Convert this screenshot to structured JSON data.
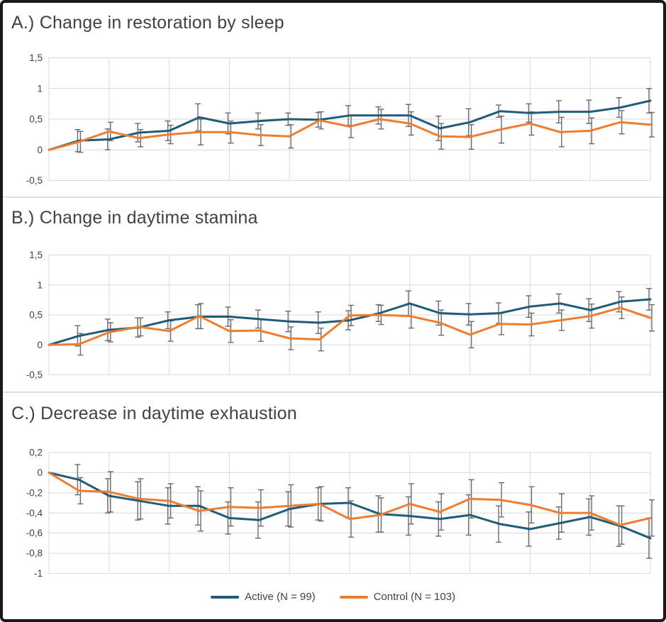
{
  "figure": {
    "background": "#FFFFFF",
    "border_color": "#1A1A1A",
    "gridline_color": "#DADADA",
    "error_bar_color": "#6B6B6B",
    "text_color": "#424242"
  },
  "legend": {
    "position": "bottom-center",
    "items": [
      {
        "label": "Active (N = 99)",
        "color": "#1F5C77"
      },
      {
        "label": "Control (N = 103)",
        "color": "#ED7D31"
      }
    ]
  },
  "chart_data": [
    {
      "type": "line",
      "title": "A.) Change in restoration by sleep",
      "ylabel": "",
      "xlabel": "",
      "x_tick_labels_visible": false,
      "n_points": 21,
      "x": [
        0,
        1,
        2,
        3,
        4,
        5,
        6,
        7,
        8,
        9,
        10,
        11,
        12,
        13,
        14,
        15,
        16,
        17,
        18,
        19,
        20
      ],
      "ylim": [
        -0.5,
        1.5
      ],
      "yticks": {
        "values": [
          1.5,
          1,
          0.5,
          0,
          -0.5
        ],
        "labels": [
          "1,5",
          "1",
          "0,5",
          "0",
          "-0,5"
        ]
      },
      "grid": true,
      "series": [
        {
          "name": "Active (N = 99)",
          "color": "#1F5C77",
          "values": [
            0,
            0.15,
            0.17,
            0.28,
            0.31,
            0.53,
            0.43,
            0.47,
            0.5,
            0.49,
            0.56,
            0.56,
            0.56,
            0.35,
            0.45,
            0.63,
            0.6,
            0.62,
            0.62,
            0.69,
            0.8
          ],
          "errors": [
            0,
            0.18,
            0.17,
            0.15,
            0.16,
            0.22,
            0.17,
            0.13,
            0.1,
            0.12,
            0.16,
            0.14,
            0.18,
            0.2,
            0.22,
            0.1,
            0.15,
            0.18,
            0.19,
            0.16,
            0.2
          ]
        },
        {
          "name": "Control (N = 103)",
          "color": "#ED7D31",
          "values": [
            0,
            0.13,
            0.3,
            0.19,
            0.25,
            0.29,
            0.29,
            0.24,
            0.22,
            0.48,
            0.38,
            0.5,
            0.43,
            0.22,
            0.21,
            0.33,
            0.43,
            0.29,
            0.31,
            0.45,
            0.41
          ],
          "errors": [
            0,
            0.17,
            0.15,
            0.14,
            0.15,
            0.21,
            0.18,
            0.17,
            0.19,
            0.14,
            0.18,
            0.16,
            0.19,
            0.21,
            0.2,
            0.22,
            0.19,
            0.24,
            0.21,
            0.19,
            0.2
          ]
        }
      ]
    },
    {
      "type": "line",
      "title": "B.) Change in daytime stamina",
      "ylabel": "",
      "xlabel": "",
      "x_tick_labels_visible": false,
      "n_points": 21,
      "x": [
        0,
        1,
        2,
        3,
        4,
        5,
        6,
        7,
        8,
        9,
        10,
        11,
        12,
        13,
        14,
        15,
        16,
        17,
        18,
        19,
        20
      ],
      "ylim": [
        -0.5,
        1.5
      ],
      "yticks": {
        "values": [
          1.5,
          1,
          0.5,
          0,
          -0.5
        ],
        "labels": [
          "1,5",
          "1",
          "0,5",
          "0",
          "-0,5"
        ]
      },
      "grid": true,
      "series": [
        {
          "name": "Active (N = 99)",
          "color": "#1F5C77",
          "values": [
            0,
            0.15,
            0.25,
            0.29,
            0.41,
            0.47,
            0.47,
            0.43,
            0.39,
            0.37,
            0.41,
            0.53,
            0.69,
            0.53,
            0.51,
            0.53,
            0.64,
            0.69,
            0.58,
            0.72,
            0.76
          ],
          "errors": [
            0,
            0.17,
            0.18,
            0.16,
            0.14,
            0.2,
            0.16,
            0.15,
            0.17,
            0.18,
            0.16,
            0.14,
            0.21,
            0.2,
            0.18,
            0.17,
            0.18,
            0.16,
            0.19,
            0.17,
            0.18
          ]
        },
        {
          "name": "Control (N = 103)",
          "color": "#ED7D31",
          "values": [
            0,
            0.01,
            0.21,
            0.3,
            0.23,
            0.48,
            0.23,
            0.24,
            0.11,
            0.09,
            0.49,
            0.5,
            0.48,
            0.37,
            0.17,
            0.35,
            0.34,
            0.41,
            0.48,
            0.62,
            0.45
          ],
          "errors": [
            0,
            0.18,
            0.16,
            0.15,
            0.17,
            0.21,
            0.19,
            0.18,
            0.19,
            0.19,
            0.17,
            0.16,
            0.2,
            0.21,
            0.22,
            0.18,
            0.19,
            0.17,
            0.2,
            0.18,
            0.22
          ]
        }
      ]
    },
    {
      "type": "line",
      "title": "C.) Decrease in daytime exhaustion",
      "ylabel": "",
      "xlabel": "",
      "x_tick_labels_visible": false,
      "n_points": 21,
      "x": [
        0,
        1,
        2,
        3,
        4,
        5,
        6,
        7,
        8,
        9,
        10,
        11,
        12,
        13,
        14,
        15,
        16,
        17,
        18,
        19,
        20
      ],
      "ylim": [
        -1,
        0.2
      ],
      "yticks": {
        "values": [
          0.2,
          0,
          -0.2,
          -0.4,
          -0.6,
          -0.8,
          -1
        ],
        "labels": [
          "0,2",
          "0",
          "-0,2",
          "-0,4",
          "-0,6",
          "-0,8",
          "-1"
        ]
      },
      "grid": true,
      "series": [
        {
          "name": "Active (N = 99)",
          "color": "#1F5C77",
          "values": [
            0,
            -0.07,
            -0.23,
            -0.28,
            -0.33,
            -0.33,
            -0.45,
            -0.47,
            -0.36,
            -0.31,
            -0.3,
            -0.41,
            -0.43,
            -0.46,
            -0.42,
            -0.51,
            -0.56,
            -0.5,
            -0.44,
            -0.53,
            -0.65
          ],
          "errors": [
            0,
            0.15,
            0.17,
            0.19,
            0.18,
            0.19,
            0.16,
            0.18,
            0.17,
            0.16,
            0.15,
            0.18,
            0.19,
            0.17,
            0.2,
            0.18,
            0.17,
            0.16,
            0.18,
            0.2,
            0.2
          ]
        },
        {
          "name": "Control (N = 103)",
          "color": "#ED7D31",
          "values": [
            0,
            -0.18,
            -0.19,
            -0.26,
            -0.28,
            -0.38,
            -0.34,
            -0.35,
            -0.33,
            -0.31,
            -0.46,
            -0.42,
            -0.31,
            -0.39,
            -0.26,
            -0.27,
            -0.32,
            -0.4,
            -0.4,
            -0.52,
            -0.45
          ],
          "errors": [
            0,
            0.13,
            0.2,
            0.2,
            0.17,
            0.2,
            0.19,
            0.18,
            0.21,
            0.17,
            0.18,
            0.17,
            0.2,
            0.18,
            0.19,
            0.17,
            0.18,
            0.19,
            0.17,
            0.19,
            0.18
          ]
        }
      ]
    }
  ]
}
